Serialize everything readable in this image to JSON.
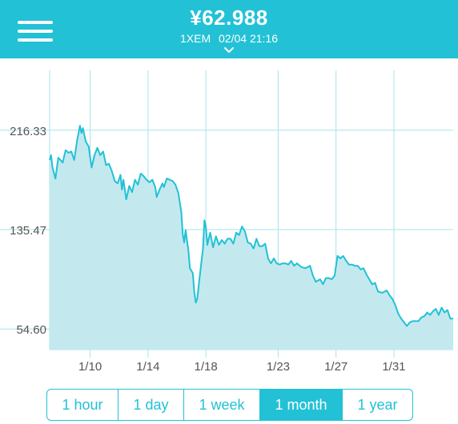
{
  "header": {
    "price": "¥62.988",
    "unit": "1XEM",
    "timestamp": "02/04 21:16",
    "accent_color": "#22c1d6"
  },
  "icons": {
    "menu": "hamburger-menu-icon",
    "expand": "chevron-down-icon"
  },
  "chart_data": {
    "type": "area",
    "title": "",
    "xlabel": "",
    "ylabel": "",
    "y_ticks": [
      54.6,
      135.47,
      216.33
    ],
    "y_tick_labels": [
      "54.60",
      "135.47",
      "216.33"
    ],
    "x_ticks": [
      9.7,
      13.7,
      17.7,
      22.7,
      26.7,
      30.7
    ],
    "x_tick_labels": [
      "1/10",
      "1/14",
      "1/18",
      "1/23",
      "1/27",
      "1/31"
    ],
    "xlim": [
      6.9,
      34.8
    ],
    "ylim": [
      37.8,
      265.0
    ],
    "grid": true,
    "legend": "none",
    "series": [
      {
        "values": [
          [
            6.9,
            192
          ],
          [
            7.0,
            196
          ],
          [
            7.1,
            186
          ],
          [
            7.3,
            177
          ],
          [
            7.5,
            194
          ],
          [
            7.8,
            190
          ],
          [
            8.0,
            200
          ],
          [
            8.2,
            198
          ],
          [
            8.4,
            199
          ],
          [
            8.6,
            192
          ],
          [
            8.8,
            208
          ],
          [
            9.0,
            220
          ],
          [
            9.1,
            214
          ],
          [
            9.2,
            218
          ],
          [
            9.4,
            207
          ],
          [
            9.6,
            203
          ],
          [
            9.8,
            186
          ],
          [
            10.0,
            196
          ],
          [
            10.2,
            202
          ],
          [
            10.4,
            196
          ],
          [
            10.6,
            199
          ],
          [
            10.8,
            188
          ],
          [
            11.0,
            189
          ],
          [
            11.2,
            183
          ],
          [
            11.4,
            175
          ],
          [
            11.6,
            173
          ],
          [
            11.8,
            180
          ],
          [
            11.9,
            168
          ],
          [
            12.0,
            176
          ],
          [
            12.2,
            160
          ],
          [
            12.4,
            171
          ],
          [
            12.6,
            166
          ],
          [
            12.8,
            176
          ],
          [
            13.0,
            172
          ],
          [
            13.2,
            181
          ],
          [
            13.4,
            179
          ],
          [
            13.6,
            176
          ],
          [
            13.8,
            174
          ],
          [
            14.0,
            176
          ],
          [
            14.2,
            170
          ],
          [
            14.3,
            162
          ],
          [
            14.5,
            168
          ],
          [
            14.7,
            173
          ],
          [
            14.8,
            170
          ],
          [
            15.0,
            177
          ],
          [
            15.2,
            176
          ],
          [
            15.4,
            175
          ],
          [
            15.6,
            172
          ],
          [
            15.8,
            165
          ],
          [
            16.0,
            150
          ],
          [
            16.1,
            132
          ],
          [
            16.2,
            125
          ],
          [
            16.3,
            135
          ],
          [
            16.5,
            118
          ],
          [
            16.6,
            104
          ],
          [
            16.8,
            100
          ],
          [
            16.9,
            85
          ],
          [
            17.0,
            76
          ],
          [
            17.1,
            79
          ],
          [
            17.3,
            100
          ],
          [
            17.5,
            120
          ],
          [
            17.6,
            143
          ],
          [
            17.7,
            138
          ],
          [
            17.8,
            123
          ],
          [
            18.0,
            133
          ],
          [
            18.2,
            121
          ],
          [
            18.4,
            130
          ],
          [
            18.6,
            123
          ],
          [
            18.8,
            127
          ],
          [
            19.0,
            124
          ],
          [
            19.2,
            128
          ],
          [
            19.4,
            128
          ],
          [
            19.6,
            124
          ],
          [
            19.8,
            133
          ],
          [
            20.0,
            131
          ],
          [
            20.2,
            138
          ],
          [
            20.4,
            134
          ],
          [
            20.6,
            125
          ],
          [
            20.8,
            124
          ],
          [
            21.0,
            120
          ],
          [
            21.2,
            128
          ],
          [
            21.4,
            122
          ],
          [
            21.6,
            122
          ],
          [
            21.8,
            124
          ],
          [
            22.0,
            112
          ],
          [
            22.2,
            108
          ],
          [
            22.4,
            112
          ],
          [
            22.6,
            108
          ],
          [
            22.8,
            107
          ],
          [
            23.0,
            108
          ],
          [
            23.2,
            108
          ],
          [
            23.4,
            107
          ],
          [
            23.6,
            110
          ],
          [
            23.8,
            106
          ],
          [
            24.0,
            108
          ],
          [
            24.3,
            105
          ],
          [
            24.6,
            104
          ],
          [
            24.9,
            106
          ],
          [
            25.1,
            98
          ],
          [
            25.3,
            93
          ],
          [
            25.6,
            95
          ],
          [
            25.8,
            91
          ],
          [
            26.0,
            96
          ],
          [
            26.2,
            96
          ],
          [
            26.4,
            95
          ],
          [
            26.6,
            98
          ],
          [
            26.8,
            114
          ],
          [
            27.0,
            112
          ],
          [
            27.2,
            114
          ],
          [
            27.4,
            110
          ],
          [
            27.6,
            107
          ],
          [
            27.8,
            107
          ],
          [
            28.0,
            106
          ],
          [
            28.2,
            106
          ],
          [
            28.4,
            103
          ],
          [
            28.6,
            104
          ],
          [
            28.8,
            99
          ],
          [
            29.0,
            95
          ],
          [
            29.2,
            91
          ],
          [
            29.4,
            92
          ],
          [
            29.6,
            85
          ],
          [
            29.9,
            84
          ],
          [
            30.2,
            86
          ],
          [
            30.4,
            82
          ],
          [
            30.6,
            79
          ],
          [
            30.8,
            74
          ],
          [
            31.0,
            67
          ],
          [
            31.2,
            63
          ],
          [
            31.4,
            60
          ],
          [
            31.6,
            57
          ],
          [
            31.8,
            60
          ],
          [
            32.0,
            61
          ],
          [
            32.4,
            61
          ],
          [
            32.6,
            64
          ],
          [
            32.8,
            65
          ],
          [
            33.0,
            68
          ],
          [
            33.2,
            66
          ],
          [
            33.4,
            69
          ],
          [
            33.6,
            71
          ],
          [
            33.8,
            66
          ],
          [
            34.0,
            72
          ],
          [
            34.2,
            68
          ],
          [
            34.4,
            70
          ],
          [
            34.6,
            63
          ],
          [
            34.8,
            63
          ]
        ]
      }
    ]
  },
  "ranges": [
    {
      "label": "1 hour",
      "active": false
    },
    {
      "label": "1 day",
      "active": false
    },
    {
      "label": "1 week",
      "active": false
    },
    {
      "label": "1 month",
      "active": true
    },
    {
      "label": "1 year",
      "active": false
    }
  ]
}
